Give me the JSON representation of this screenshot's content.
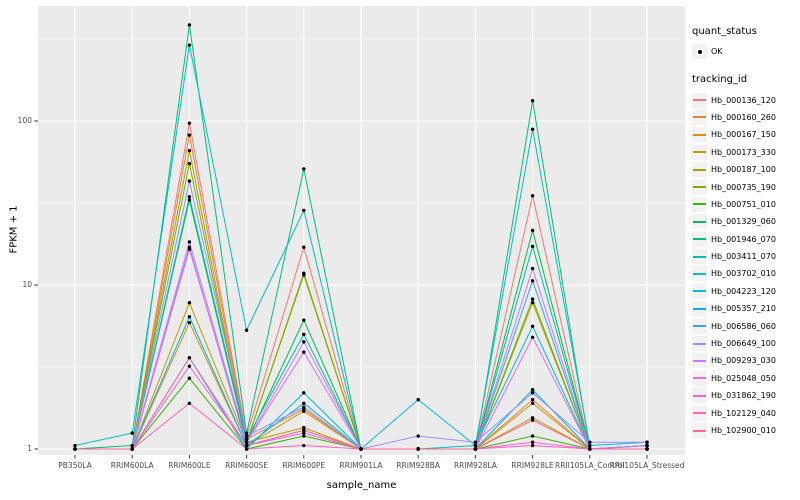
{
  "axes": {
    "x_title": "sample_name",
    "y_title": "FPKM + 1",
    "y_tick_labels": [
      "1",
      "10",
      "100"
    ]
  },
  "legend": {
    "quant_status": {
      "title": "quant_status",
      "items": [
        {
          "label": "OK",
          "symbol": "point"
        }
      ]
    },
    "tracking_id": {
      "title": "tracking_id"
    }
  },
  "colors": {
    "panel_bg": "#ebebeb",
    "grid": "#ffffff",
    "axis_text": "#4d4d4d",
    "tick_mark": "#333333",
    "point": "#000000",
    "key_bg": "#f2f2f2"
  },
  "chart_data": {
    "type": "line",
    "title": "",
    "xlabel": "sample_name",
    "ylabel": "FPKM + 1",
    "y_scale": "log10",
    "y_ticks": [
      1,
      10,
      100
    ],
    "y_minor_ticks": [
      3.162,
      31.62,
      316.2
    ],
    "ylim": [
      0.92,
      500
    ],
    "grid": true,
    "legend_position": "right",
    "point_marker": "black dot (quant_status OK)",
    "categories": [
      "PB350LA",
      "RRIM600LA",
      "RRIM600LE",
      "RRIM600SE",
      "RRIM600PE",
      "RRIM901LA",
      "RRIM928BA",
      "RRIM928LA",
      "RRIM928LE",
      "RRII105LA_Control",
      "RRII105LA_Stressed"
    ],
    "series": [
      {
        "name": "Hb_000136_120",
        "color": "#F8766D",
        "values": [
          1.0,
          1.0,
          97,
          1.2,
          17,
          1.0,
          1.0,
          1.0,
          35,
          1.0,
          1.0
        ]
      },
      {
        "name": "Hb_000160_260",
        "color": "#EA8331",
        "values": [
          1.0,
          1.0,
          82,
          1.15,
          1.75,
          1.0,
          1.0,
          1.0,
          2.0,
          1.0,
          1.0
        ]
      },
      {
        "name": "Hb_000167_150",
        "color": "#D89000",
        "values": [
          1.0,
          1.0,
          5.9,
          1.05,
          1.7,
          1.0,
          1.0,
          1.0,
          1.9,
          1.0,
          1.05
        ]
      },
      {
        "name": "Hb_000173_330",
        "color": "#C09B00",
        "values": [
          1.0,
          1.0,
          7.8,
          1.1,
          1.35,
          1.0,
          1.0,
          1.0,
          1.55,
          1.0,
          1.05
        ]
      },
      {
        "name": "Hb_000187_100",
        "color": "#A3A500",
        "values": [
          1.0,
          1.0,
          66,
          1.1,
          11.5,
          1.0,
          1.0,
          1.0,
          7.8,
          1.0,
          1.0
        ]
      },
      {
        "name": "Hb_000735_190",
        "color": "#7CAE00",
        "values": [
          1.0,
          1.0,
          55,
          1.1,
          11.8,
          1.0,
          1.0,
          1.0,
          8.2,
          1.0,
          1.0
        ]
      },
      {
        "name": "Hb_000751_010",
        "color": "#39B600",
        "values": [
          1.0,
          1.0,
          2.7,
          1.0,
          1.2,
          1.0,
          1.0,
          1.0,
          1.2,
          1.0,
          1.0
        ]
      },
      {
        "name": "Hb_001329_060",
        "color": "#00BB4E",
        "values": [
          1.0,
          1.0,
          33,
          1.1,
          6.1,
          1.0,
          1.0,
          1.0,
          21.5,
          1.0,
          1.0
        ]
      },
      {
        "name": "Hb_001946_070",
        "color": "#00BF7D",
        "values": [
          1.0,
          1.05,
          385,
          1.25,
          51,
          1.0,
          1.0,
          1.0,
          133,
          1.0,
          1.05
        ]
      },
      {
        "name": "Hb_003411_070",
        "color": "#00C1A3",
        "values": [
          1.0,
          1.0,
          34.5,
          1.15,
          5.0,
          1.0,
          1.0,
          1.0,
          17.2,
          1.0,
          1.0
        ]
      },
      {
        "name": "Hb_003702_010",
        "color": "#00BFC4",
        "values": [
          1.05,
          1.25,
          290,
          5.3,
          28.5,
          1.0,
          1.0,
          1.05,
          89,
          1.05,
          1.1
        ]
      },
      {
        "name": "Hb_004223_120",
        "color": "#00BAE0",
        "values": [
          1.0,
          1.0,
          3.6,
          1.0,
          2.2,
          1.0,
          2.0,
          1.05,
          5.6,
          1.0,
          1.05
        ]
      },
      {
        "name": "Hb_005357_210",
        "color": "#00B0F6",
        "values": [
          1.0,
          1.0,
          6.4,
          1.05,
          1.9,
          1.0,
          1.0,
          1.0,
          2.3,
          1.0,
          1.0
        ]
      },
      {
        "name": "Hb_006586_060",
        "color": "#35A2FF",
        "values": [
          1.0,
          1.0,
          17,
          1.05,
          1.3,
          1.0,
          1.0,
          1.0,
          10.6,
          1.0,
          1.05
        ]
      },
      {
        "name": "Hb_006649_100",
        "color": "#9590FF",
        "values": [
          1.0,
          1.0,
          43,
          1.2,
          1.8,
          1.0,
          1.2,
          1.1,
          2.2,
          1.1,
          1.1
        ]
      },
      {
        "name": "Hb_009293_030",
        "color": "#C77CFF",
        "values": [
          1.0,
          1.0,
          18.3,
          1.1,
          4.5,
          1.0,
          1.0,
          1.0,
          12.6,
          1.0,
          1.05
        ]
      },
      {
        "name": "Hb_025048_050",
        "color": "#E76BF3",
        "values": [
          1.0,
          1.0,
          16.5,
          1.1,
          3.9,
          1.0,
          1.0,
          1.0,
          4.8,
          1.0,
          1.0
        ]
      },
      {
        "name": "Hb_031862_190",
        "color": "#FA62DB",
        "values": [
          1.0,
          1.0,
          3.2,
          1.05,
          1.25,
          1.0,
          1.0,
          1.0,
          1.1,
          1.0,
          1.0
        ]
      },
      {
        "name": "Hb_102129_040",
        "color": "#FF62BC",
        "values": [
          1.0,
          1.0,
          1.9,
          1.0,
          1.05,
          1.0,
          1.0,
          1.0,
          1.05,
          1.0,
          1.0
        ]
      },
      {
        "name": "Hb_102900_010",
        "color": "#FF6A98",
        "values": [
          1.0,
          1.0,
          3.6,
          1.05,
          1.3,
          1.0,
          1.0,
          1.0,
          1.5,
          1.0,
          1.0
        ]
      }
    ]
  }
}
